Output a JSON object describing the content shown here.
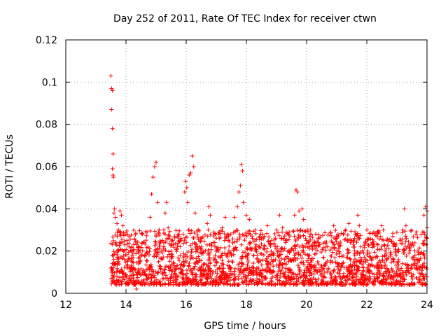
{
  "chart_data": {
    "type": "scatter",
    "title": "Day 252 of 2011, Rate Of TEC Index for receiver ctwn",
    "xlabel": "GPS time / hours",
    "ylabel": "ROTI / TECUs",
    "xlim": [
      12,
      24
    ],
    "ylim": [
      0,
      0.12
    ],
    "x_ticks": [
      "12",
      "14",
      "16",
      "18",
      "20",
      "22",
      "24"
    ],
    "y_ticks": [
      "0",
      "0.02",
      "0.04",
      "0.06",
      "0.08",
      "0.1",
      "0.12"
    ],
    "grid": true,
    "marker": "+",
    "color": "#ff0000",
    "series": [
      {
        "points": [
          [
            13.5,
            0.103
          ],
          [
            13.52,
            0.097
          ],
          [
            13.55,
            0.096
          ],
          [
            13.52,
            0.087
          ],
          [
            13.55,
            0.078
          ],
          [
            13.57,
            0.066
          ],
          [
            13.55,
            0.059
          ],
          [
            13.57,
            0.056
          ],
          [
            13.58,
            0.055
          ],
          [
            13.6,
            0.038
          ],
          [
            13.62,
            0.04
          ],
          [
            13.65,
            0.036
          ],
          [
            13.7,
            0.033
          ],
          [
            13.75,
            0.03
          ],
          [
            13.5,
            0.012
          ],
          [
            13.55,
            0.01
          ],
          [
            13.6,
            0.008
          ],
          [
            13.65,
            0.014
          ],
          [
            13.7,
            0.017
          ],
          [
            13.8,
            0.039
          ],
          [
            13.85,
            0.037
          ],
          [
            13.9,
            0.032
          ],
          [
            14.0,
            0.028
          ],
          [
            14.1,
            0.022
          ],
          [
            14.2,
            0.015
          ],
          [
            14.25,
            0.006
          ],
          [
            14.3,
            0.004
          ],
          [
            14.35,
            0.002
          ],
          [
            14.4,
            0.01
          ],
          [
            14.5,
            0.018
          ],
          [
            14.6,
            0.024
          ],
          [
            14.7,
            0.029
          ],
          [
            14.8,
            0.036
          ],
          [
            14.85,
            0.047
          ],
          [
            14.9,
            0.055
          ],
          [
            14.95,
            0.06
          ],
          [
            15.0,
            0.062
          ],
          [
            15.05,
            0.043
          ],
          [
            15.1,
            0.03
          ],
          [
            15.2,
            0.025
          ],
          [
            15.3,
            0.038
          ],
          [
            15.35,
            0.043
          ],
          [
            15.4,
            0.031
          ],
          [
            15.5,
            0.02
          ],
          [
            15.6,
            0.013
          ],
          [
            15.7,
            0.008
          ],
          [
            15.8,
            0.018
          ],
          [
            15.9,
            0.028
          ],
          [
            15.95,
            0.048
          ],
          [
            15.98,
            0.053
          ],
          [
            16.02,
            0.05
          ],
          [
            16.05,
            0.043
          ],
          [
            16.1,
            0.056
          ],
          [
            16.15,
            0.057
          ],
          [
            16.2,
            0.065
          ],
          [
            16.25,
            0.06
          ],
          [
            16.3,
            0.038
          ],
          [
            16.4,
            0.03
          ],
          [
            16.5,
            0.022
          ],
          [
            16.6,
            0.014
          ],
          [
            16.7,
            0.033
          ],
          [
            16.75,
            0.041
          ],
          [
            16.8,
            0.037
          ],
          [
            16.9,
            0.029
          ],
          [
            17.0,
            0.02
          ],
          [
            17.1,
            0.026
          ],
          [
            17.2,
            0.031
          ],
          [
            17.3,
            0.036
          ],
          [
            17.4,
            0.025
          ],
          [
            17.5,
            0.018
          ],
          [
            17.6,
            0.036
          ],
          [
            17.7,
            0.041
          ],
          [
            17.75,
            0.048
          ],
          [
            17.8,
            0.051
          ],
          [
            17.83,
            0.061
          ],
          [
            17.87,
            0.058
          ],
          [
            17.9,
            0.043
          ],
          [
            18.0,
            0.037
          ],
          [
            18.1,
            0.035
          ],
          [
            18.2,
            0.026
          ],
          [
            18.3,
            0.02
          ],
          [
            18.4,
            0.012
          ],
          [
            18.5,
            0.008
          ],
          [
            18.6,
            0.027
          ],
          [
            18.7,
            0.032
          ],
          [
            18.8,
            0.023
          ],
          [
            18.9,
            0.018
          ],
          [
            19.0,
            0.03
          ],
          [
            19.1,
            0.037
          ],
          [
            19.2,
            0.031
          ],
          [
            19.3,
            0.024
          ],
          [
            19.4,
            0.015
          ],
          [
            19.5,
            0.021
          ],
          [
            19.6,
            0.037
          ],
          [
            19.65,
            0.049
          ],
          [
            19.7,
            0.048
          ],
          [
            19.75,
            0.039
          ],
          [
            19.8,
            0.03
          ],
          [
            19.85,
            0.04
          ],
          [
            19.9,
            0.035
          ],
          [
            20.0,
            0.025
          ],
          [
            20.1,
            0.018
          ],
          [
            20.2,
            0.022
          ],
          [
            20.3,
            0.028
          ],
          [
            20.4,
            0.024
          ],
          [
            20.5,
            0.013
          ],
          [
            20.6,
            0.01
          ],
          [
            20.7,
            0.022
          ],
          [
            20.8,
            0.029
          ],
          [
            20.9,
            0.032
          ],
          [
            21.0,
            0.026
          ],
          [
            21.1,
            0.019
          ],
          [
            21.2,
            0.014
          ],
          [
            21.3,
            0.03
          ],
          [
            21.4,
            0.033
          ],
          [
            21.5,
            0.025
          ],
          [
            21.6,
            0.018
          ],
          [
            21.7,
            0.037
          ],
          [
            21.75,
            0.032
          ],
          [
            21.8,
            0.022
          ],
          [
            21.9,
            0.015
          ],
          [
            22.0,
            0.01
          ],
          [
            22.1,
            0.019
          ],
          [
            22.2,
            0.023
          ],
          [
            22.3,
            0.017
          ],
          [
            22.4,
            0.012
          ],
          [
            22.5,
            0.032
          ],
          [
            22.55,
            0.03
          ],
          [
            22.6,
            0.018
          ],
          [
            22.7,
            0.011
          ],
          [
            22.8,
            0.008
          ],
          [
            22.9,
            0.015
          ],
          [
            23.0,
            0.02
          ],
          [
            23.1,
            0.025
          ],
          [
            23.2,
            0.03
          ],
          [
            23.25,
            0.04
          ],
          [
            23.3,
            0.032
          ],
          [
            23.4,
            0.019
          ],
          [
            23.5,
            0.012
          ],
          [
            23.6,
            0.018
          ],
          [
            23.7,
            0.02
          ],
          [
            23.8,
            0.006
          ],
          [
            23.9,
            0.037
          ],
          [
            23.95,
            0.041
          ],
          [
            24.0,
            0.039
          ],
          [
            24.0,
            0.031
          ]
        ]
      }
    ],
    "scatter_band": {
      "note_series": "dense cloud of points",
      "x_range": [
        13.5,
        24.0
      ],
      "y_base_range": [
        0.004,
        0.03
      ]
    }
  }
}
